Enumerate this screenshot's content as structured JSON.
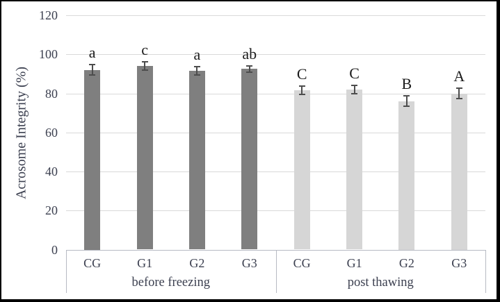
{
  "chart_data": {
    "type": "bar",
    "title": "",
    "xlabel": "",
    "ylabel": "Acrosome Integrity (%)",
    "ylim": [
      0,
      120
    ],
    "yticks": [
      0,
      20,
      40,
      60,
      80,
      100,
      120
    ],
    "grid": true,
    "legend_position": "none",
    "categories": [
      "CG",
      "G1",
      "G2",
      "G3"
    ],
    "groups": [
      {
        "label": "before freezing",
        "bar_color": "#7f7f7f",
        "bars": [
          {
            "category": "CG",
            "value": 92,
            "error": 3,
            "letter": "a"
          },
          {
            "category": "G1",
            "value": 94,
            "error": 2.5,
            "letter": "c"
          },
          {
            "category": "G2",
            "value": 91.5,
            "error": 2.5,
            "letter": "a"
          },
          {
            "category": "G3",
            "value": 92.5,
            "error": 2,
            "letter": "ab"
          }
        ]
      },
      {
        "label": "post thawing",
        "bar_color": "#d6d6d6",
        "bars": [
          {
            "category": "CG",
            "value": 81.5,
            "error": 2.5,
            "letter": "C"
          },
          {
            "category": "G1",
            "value": 82,
            "error": 2.5,
            "letter": "C"
          },
          {
            "category": "G2",
            "value": 76,
            "error": 3,
            "letter": "B"
          },
          {
            "category": "G3",
            "value": 80,
            "error": 3,
            "letter": "A"
          }
        ]
      }
    ]
  },
  "colors": {
    "gridline": "#d9d9d9",
    "axis_line": "#b7bac3",
    "error_bar": "#4d4d4d",
    "text": "#3c4050",
    "letter": "#1c1c1c",
    "frame_border": "#000000",
    "background": "#ffffff"
  }
}
